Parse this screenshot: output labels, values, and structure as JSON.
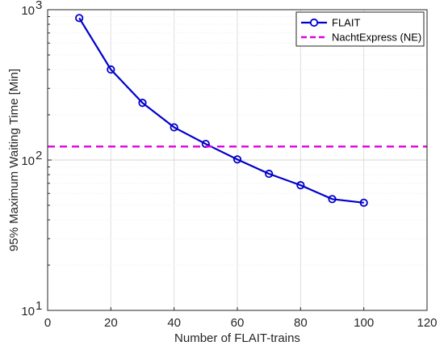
{
  "chart_data": {
    "type": "line",
    "title": "",
    "xlabel": "Number of FLAIT-trains",
    "ylabel": "95% Maximum Waiting Time [Min]",
    "xlim": [
      0,
      120
    ],
    "ylim": [
      10,
      1000
    ],
    "yscale": "log",
    "grid": true,
    "legend_position": "top-right",
    "xticks": [
      "0",
      "20",
      "40",
      "60",
      "80",
      "100",
      "120"
    ],
    "yticks": [
      {
        "value": 10,
        "base": "10",
        "exp": "1"
      },
      {
        "value": 100,
        "base": "10",
        "exp": "2"
      },
      {
        "value": 1000,
        "base": "10",
        "exp": "3"
      }
    ],
    "series": [
      {
        "name": "FLAIT",
        "color": "#0000CC",
        "style": "solid-line-circle-markers",
        "x": [
          10,
          20,
          30,
          40,
          50,
          60,
          70,
          80,
          90,
          100
        ],
        "y": [
          880,
          400,
          240,
          165,
          128,
          101,
          81,
          68,
          55,
          52
        ]
      },
      {
        "name": "NachtExpress (NE)",
        "color": "#E000E0",
        "style": "dashed-line",
        "x": [
          0,
          120
        ],
        "y": [
          123,
          123
        ]
      }
    ]
  }
}
